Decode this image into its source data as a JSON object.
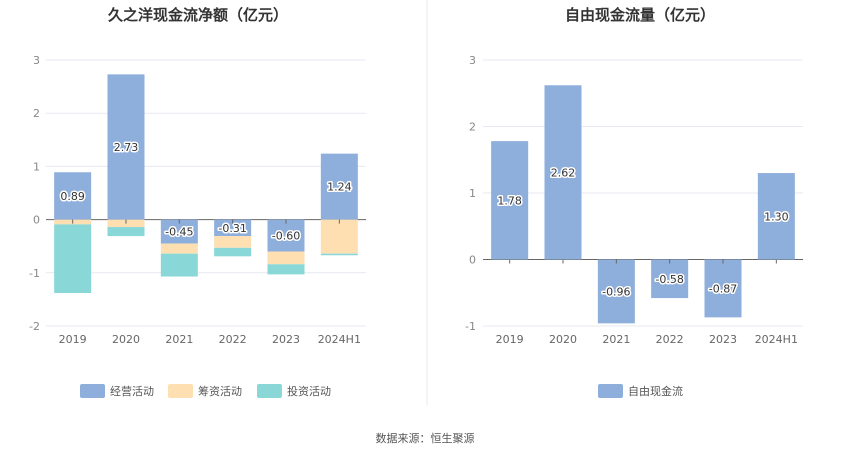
{
  "colors": {
    "operating": "#8eaedc",
    "financing": "#fddfb2",
    "investing": "#8ad7d8",
    "fcf": "#8eaedc",
    "grid": "#e6e9f0",
    "zero": "#666666",
    "divider": "#e8e8e8"
  },
  "source_text": "数据来源：恒生聚源",
  "chart_data": [
    {
      "type": "bar",
      "stacked": true,
      "title": "久之洋现金流净额（亿元）",
      "categories": [
        "2019",
        "2020",
        "2021",
        "2022",
        "2023",
        "2024H1"
      ],
      "yticks": [
        3,
        2,
        1,
        0,
        -1,
        -2
      ],
      "ylim": [
        -2,
        3
      ],
      "series": [
        {
          "name": "经营活动",
          "color_key": "operating",
          "values": [
            0.89,
            2.73,
            -0.45,
            -0.31,
            -0.6,
            1.24
          ],
          "labels": [
            "0.89",
            "2.73",
            "-0.45",
            "-0.31",
            "-0.60",
            "1.24"
          ]
        },
        {
          "name": "筹资活动",
          "color_key": "financing",
          "values": [
            -0.09,
            -0.14,
            -0.19,
            -0.22,
            -0.24,
            -0.64
          ]
        },
        {
          "name": "投资活动",
          "color_key": "investing",
          "values": [
            -1.29,
            -0.17,
            -0.43,
            -0.16,
            -0.19,
            -0.03
          ]
        }
      ],
      "legend": [
        "经营活动",
        "筹资活动",
        "投资活动"
      ]
    },
    {
      "type": "bar",
      "title": "自由现金流量（亿元）",
      "categories": [
        "2019",
        "2020",
        "2021",
        "2022",
        "2023",
        "2024H1"
      ],
      "yticks": [
        3,
        2,
        1,
        0,
        -1
      ],
      "ylim": [
        -1,
        3
      ],
      "series": [
        {
          "name": "自由现金流",
          "color_key": "fcf",
          "values": [
            1.78,
            2.62,
            -0.96,
            -0.58,
            -0.87,
            1.3
          ],
          "labels": [
            "1.78",
            "2.62",
            "-0.96",
            "-0.58",
            "-0.87",
            "1.30"
          ]
        }
      ],
      "legend": [
        "自由现金流"
      ]
    }
  ]
}
